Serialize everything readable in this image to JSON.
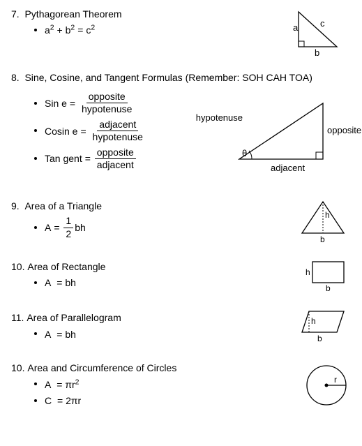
{
  "sections": [
    {
      "num": "7.",
      "title": "Pythagorean Theorem",
      "formulas": [
        {
          "lhs": "a<sup>2</sup> + b<sup>2</sup>",
          "rhs_plain": "c<sup>2</sup>"
        }
      ],
      "diagram": {
        "type": "right-triangle-abc",
        "labels": {
          "a": "a",
          "b": "b",
          "c": "c"
        },
        "stroke": "#000000",
        "fill": "#ffffff"
      }
    },
    {
      "num": "8.",
      "title": "Sine, Cosine, and Tangent Formulas (Remember: SOH CAH TOA)",
      "formulas": [
        {
          "lhs": "Sin e",
          "num": "opposite",
          "den": "hypotenuse"
        },
        {
          "lhs": "Cosin e",
          "num": "adjacent",
          "den": "hypotenuse"
        },
        {
          "lhs": "Tan gent",
          "num": "opposite",
          "den": "adjacent"
        }
      ],
      "diagram": {
        "type": "right-triangle-trig",
        "labels": {
          "hyp": "hypotenuse",
          "opp": "opposite",
          "adj": "adjacent",
          "theta": "θ"
        },
        "stroke": "#000000"
      }
    },
    {
      "num": "9.",
      "title": "Area of a Triangle",
      "formulas": [
        {
          "lhs": "A",
          "pre_frac": "",
          "num": "1",
          "den": "2",
          "post": "bh"
        }
      ],
      "diagram": {
        "type": "triangle-bh",
        "labels": {
          "b": "b",
          "h": "h"
        },
        "stroke": "#000000"
      }
    },
    {
      "num": "10.",
      "title": "Area of Rectangle",
      "formulas": [
        {
          "lhs": "A",
          "rhs_plain": "bh"
        }
      ],
      "diagram": {
        "type": "rectangle-bh",
        "labels": {
          "b": "b",
          "h": "h"
        },
        "stroke": "#000000"
      }
    },
    {
      "num": "11.",
      "title": "Area of Parallelogram",
      "formulas": [
        {
          "lhs": "A",
          "rhs_plain": "bh"
        }
      ],
      "diagram": {
        "type": "parallelogram-bh",
        "labels": {
          "b": "b",
          "h": "h"
        },
        "stroke": "#000000"
      }
    },
    {
      "num": "10.",
      "title": "Area and Circumference of Circles",
      "formulas": [
        {
          "lhs": "A",
          "rhs_plain": "πr<sup>2</sup>"
        },
        {
          "lhs": "C",
          "rhs_plain": "2πr"
        }
      ],
      "diagram": {
        "type": "circle-r",
        "labels": {
          "r": "r"
        },
        "stroke": "#000000"
      }
    }
  ]
}
